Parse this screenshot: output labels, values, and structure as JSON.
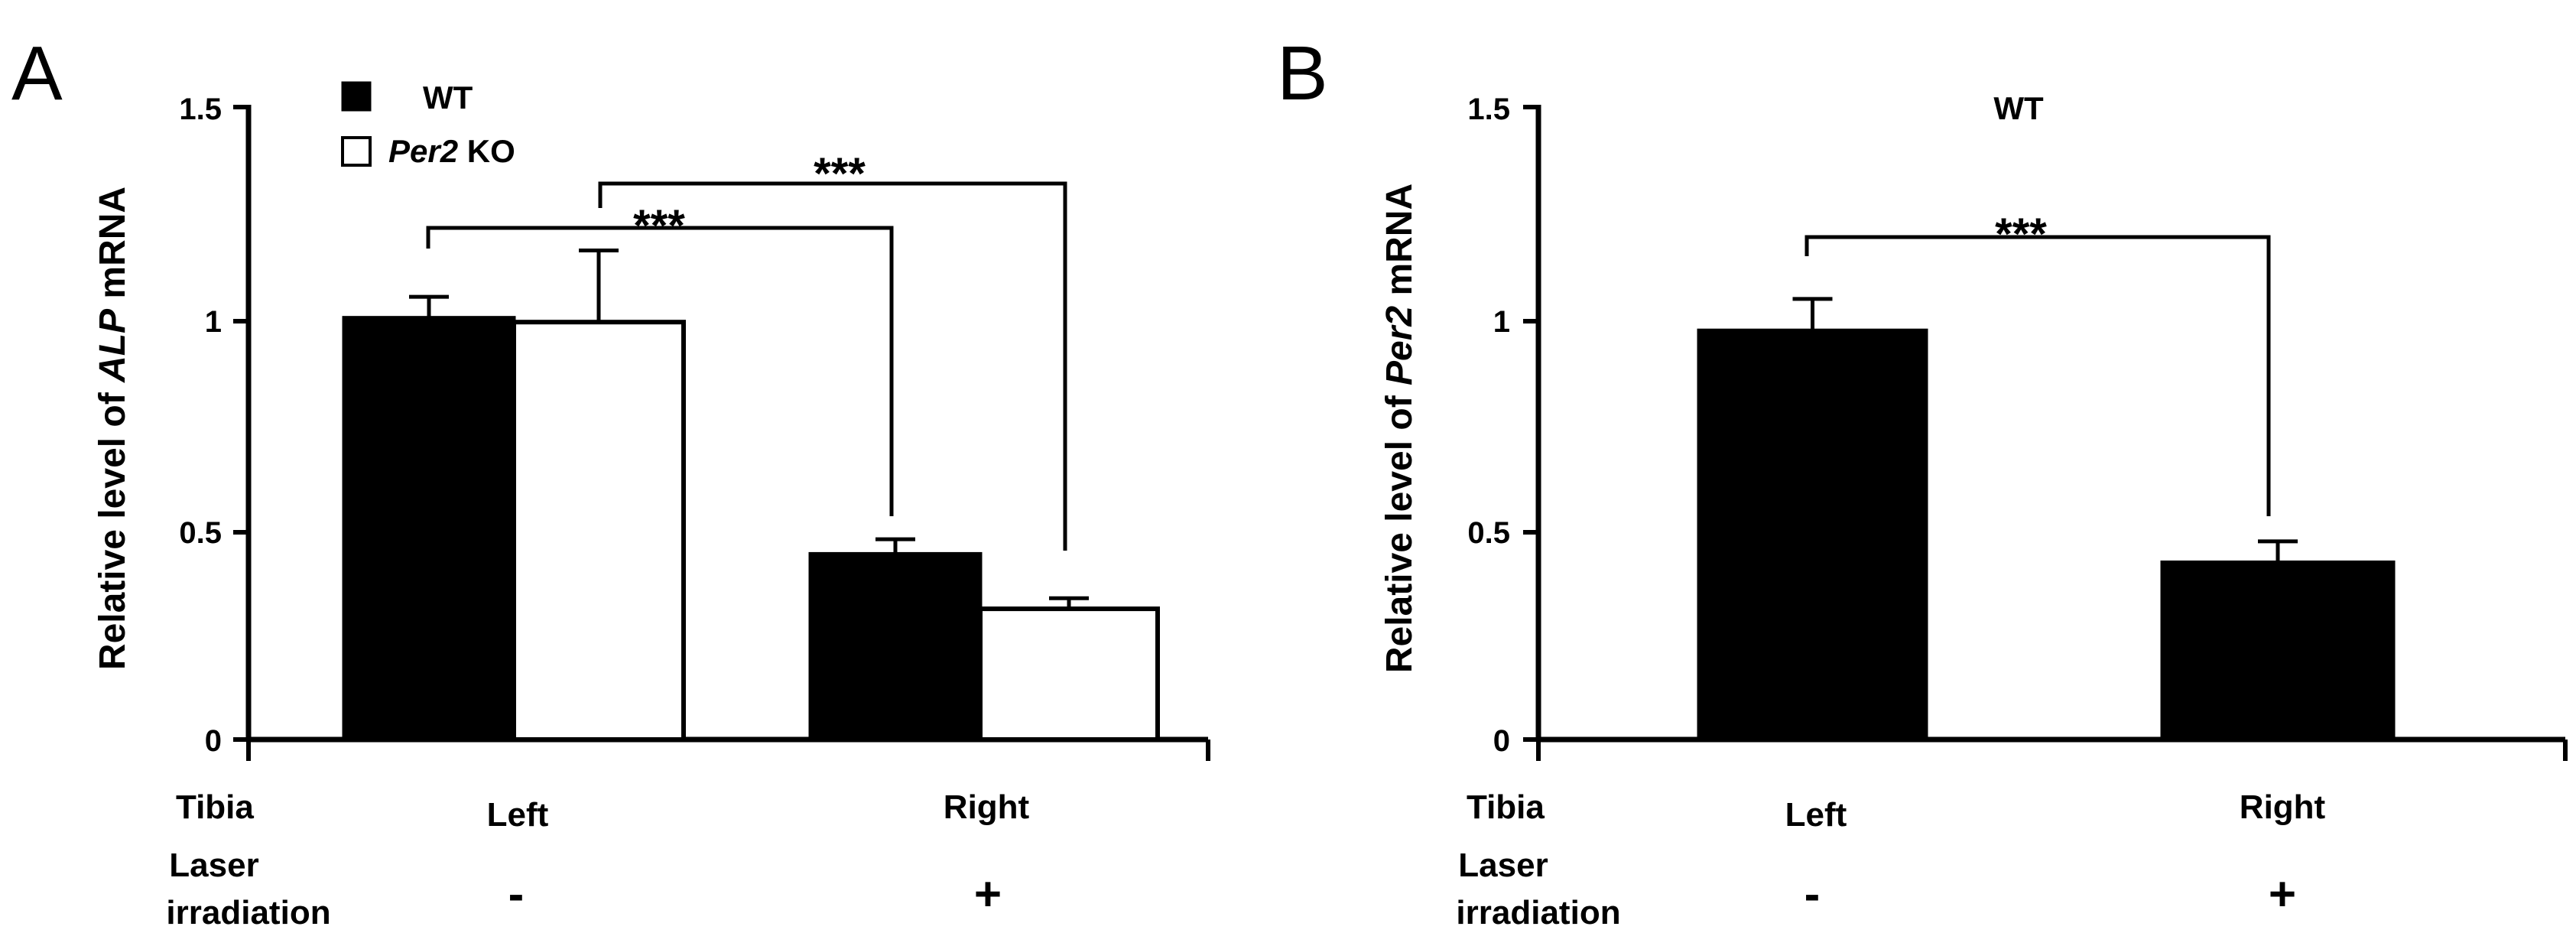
{
  "chart_data": [
    {
      "type": "bar",
      "panel_label": "A",
      "ylabel_parts": [
        "Relative level of ",
        "ALP",
        " mRNA"
      ],
      "ylim": [
        0,
        1.5
      ],
      "yticks": [
        "0",
        "0.5",
        "1",
        "1.5"
      ],
      "categories": [
        "Left",
        "Right"
      ],
      "row_labels": {
        "tibia": "Tibia",
        "laser_line1": "Laser",
        "laser_line2": "irradiation"
      },
      "laser_signs": [
        "-",
        "+"
      ],
      "legend": [
        {
          "name_parts": [
            "",
            "WT",
            ""
          ],
          "fill": "#000000"
        },
        {
          "name_parts": [
            "Per2",
            " KO",
            ""
          ],
          "fill": "#ffffff"
        }
      ],
      "series": [
        {
          "name": "WT",
          "values": [
            1.0,
            0.44
          ],
          "errors": [
            0.05,
            0.035
          ]
        },
        {
          "name": "Per2 KO",
          "values": [
            0.99,
            0.31
          ],
          "errors": [
            0.17,
            0.025
          ]
        }
      ],
      "significance": [
        {
          "from": "Left WT",
          "to": "Right WT",
          "label": "***"
        },
        {
          "from": "Left Per2 KO",
          "to": "Right Per2 KO",
          "label": "***"
        }
      ]
    },
    {
      "type": "bar",
      "panel_label": "B",
      "title": "WT",
      "ylabel_parts": [
        "Relative level of ",
        "Per2",
        " mRNA"
      ],
      "ylim": [
        0,
        1.5
      ],
      "yticks": [
        "0",
        "0.5",
        "1",
        "1.5"
      ],
      "categories": [
        "Left",
        "Right"
      ],
      "row_labels": {
        "tibia": "Tibia",
        "laser_line1": "Laser",
        "laser_line2": "irradiation"
      },
      "laser_signs": [
        "-",
        "+"
      ],
      "series": [
        {
          "name": "WT",
          "values": [
            0.97,
            0.42
          ],
          "errors": [
            0.075,
            0.05
          ]
        }
      ],
      "significance": [
        {
          "from": "Left",
          "to": "Right",
          "label": "***"
        }
      ]
    }
  ]
}
